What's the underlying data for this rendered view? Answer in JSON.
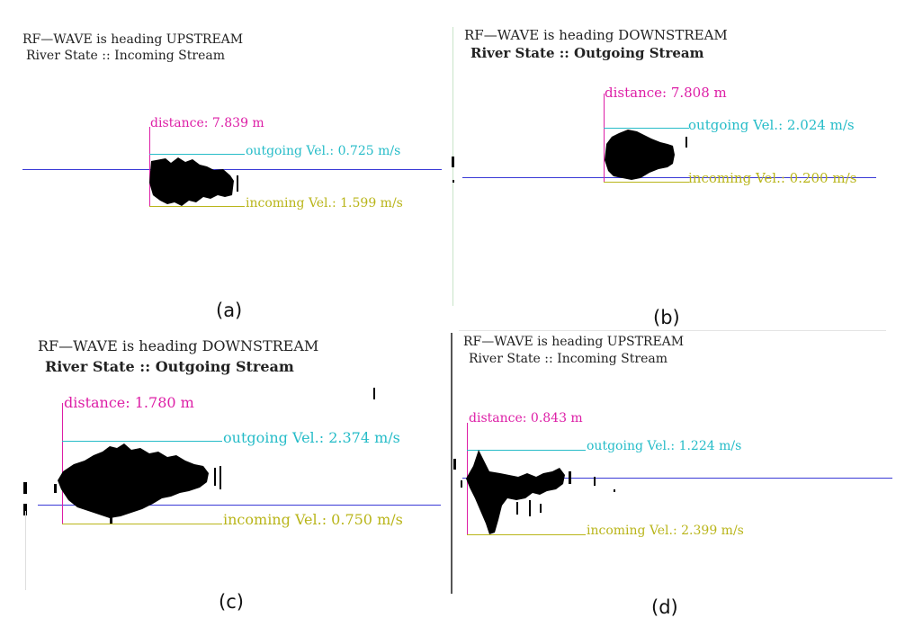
{
  "colors": {
    "distance": "#dd1ea6",
    "outgoing": "#26bcc8",
    "incoming": "#b9b51a",
    "axis": "#3a3ad6",
    "waveform": "#000000"
  },
  "panels": [
    {
      "id": "a",
      "title_line1": "RF—WAVE is heading UPSTREAM",
      "title_line2": "River State :: Incoming Stream",
      "distance_label": "distance: 7.839 m",
      "outgoing_label": "outgoing Vel.: 0.725 m/s",
      "incoming_label": "incoming Vel.: 1.599 m/s",
      "caption": "(a)"
    },
    {
      "id": "b",
      "title_line1": "RF—WAVE is heading DOWNSTREAM",
      "title_line2": "River State :: Outgoing Stream",
      "distance_label": "distance: 7.808 m",
      "outgoing_label": "outgoing Vel.: 2.024 m/s",
      "incoming_label": "incoming Vel.: 0.200 m/s",
      "caption": "(b)"
    },
    {
      "id": "c",
      "title_line1": "RF—WAVE is heading DOWNSTREAM",
      "title_line2": "River State :: Outgoing Stream",
      "distance_label": "distance: 1.780 m",
      "outgoing_label": "outgoing Vel.: 2.374 m/s",
      "incoming_label": "incoming Vel.: 0.750 m/s",
      "caption": "(c)"
    },
    {
      "id": "d",
      "title_line1": "RF—WAVE is heading UPSTREAM",
      "title_line2": "River State :: Incoming Stream",
      "distance_label": "distance: 0.843 m",
      "outgoing_label": "outgoing Vel.: 1.224 m/s",
      "incoming_label": "incoming Vel.: 2.399 m/s",
      "caption": "(d)"
    }
  ]
}
